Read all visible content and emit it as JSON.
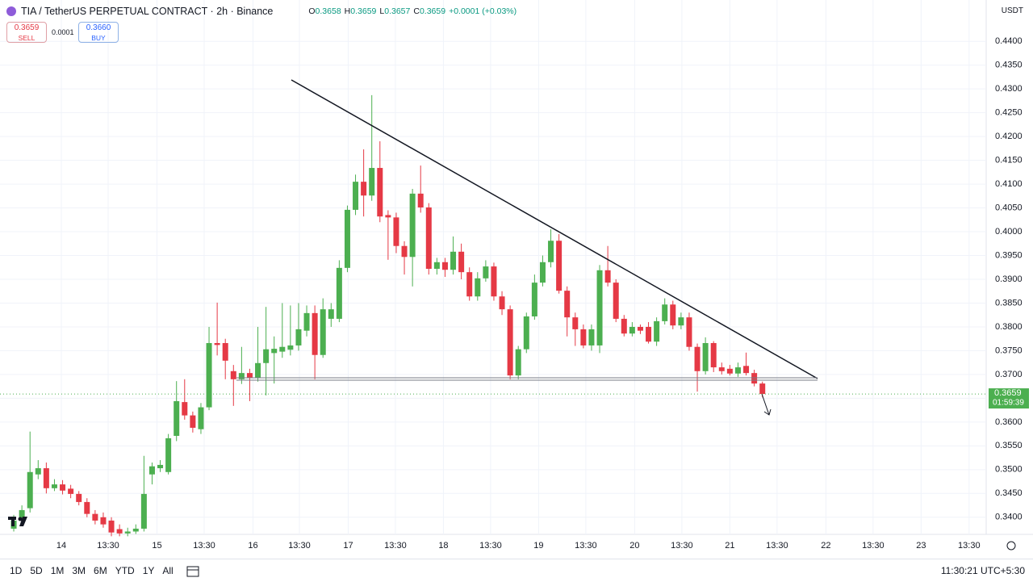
{
  "header": {
    "title": "TIA / TetherUS PERPETUAL CONTRACT · 2h · Binance",
    "ohlc": [
      {
        "label": "O",
        "value": "0.3658"
      },
      {
        "label": "H",
        "value": "0.3659"
      },
      {
        "label": "L",
        "value": "0.3657"
      },
      {
        "label": "C",
        "value": "0.3659"
      }
    ],
    "change": "+0.0001 (+0.03%)",
    "sell": {
      "price": "0.3659",
      "label": "SELL"
    },
    "spread": "0.0001",
    "buy": {
      "price": "0.3660",
      "label": "BUY"
    },
    "currency": "USDT"
  },
  "chart_data": {
    "type": "candlestick",
    "up_color": "#4caf50",
    "down_color": "#e53945",
    "grid": true,
    "open": [
      0.3376,
      0.3393,
      0.3419,
      0.349,
      0.3503,
      0.3461,
      0.3469,
      0.346,
      0.3449,
      0.3432,
      0.3407,
      0.34,
      0.3393,
      0.3375,
      0.3366,
      0.337,
      0.3376,
      0.349,
      0.3503,
      0.3495,
      0.3571,
      0.3642,
      0.3614,
      0.3585,
      0.3631,
      0.3766,
      0.3766,
      0.3707,
      0.369,
      0.3703,
      0.3693,
      0.3724,
      0.3745,
      0.3748,
      0.3752,
      0.3761,
      0.3792,
      0.3829,
      0.3741,
      0.3817,
      0.3817,
      0.3924,
      0.4046,
      0.4105,
      0.4076,
      0.4134,
      0.4035,
      0.403,
      0.397,
      0.3947,
      0.408,
      0.4051,
      0.3922,
      0.3936,
      0.392,
      0.3958,
      0.3915,
      0.3864,
      0.3902,
      0.3927,
      0.3864,
      0.3837,
      0.3698,
      0.3753,
      0.3822,
      0.3893,
      0.3936,
      0.3981,
      0.3876,
      0.382,
      0.3795,
      0.3761,
      0.3761,
      0.3919,
      0.3893,
      0.3817,
      0.3786,
      0.38,
      0.38,
      0.3769,
      0.3812,
      0.3847,
      0.3803,
      0.382,
      0.3758,
      0.3707,
      0.3766,
      0.3715,
      0.3712,
      0.3702,
      0.3718,
      0.3703,
      0.3681
    ],
    "high": [
      0.3405,
      0.3425,
      0.358,
      0.352,
      0.3515,
      0.348,
      0.3478,
      0.3468,
      0.3455,
      0.344,
      0.3415,
      0.341,
      0.34,
      0.3385,
      0.3378,
      0.3385,
      0.3529,
      0.3515,
      0.352,
      0.3575,
      0.3686,
      0.369,
      0.3622,
      0.364,
      0.38,
      0.3851,
      0.3775,
      0.372,
      0.3758,
      0.3712,
      0.38,
      0.3842,
      0.378,
      0.385,
      0.3845,
      0.385,
      0.3845,
      0.3845,
      0.386,
      0.385,
      0.394,
      0.4055,
      0.412,
      0.4173,
      0.4287,
      0.419,
      0.4045,
      0.404,
      0.398,
      0.409,
      0.4139,
      0.406,
      0.3945,
      0.3945,
      0.399,
      0.3975,
      0.3925,
      0.3915,
      0.394,
      0.3935,
      0.3875,
      0.3845,
      0.376,
      0.383,
      0.391,
      0.395,
      0.4005,
      0.3995,
      0.3885,
      0.383,
      0.3805,
      0.3805,
      0.393,
      0.397,
      0.39,
      0.3825,
      0.381,
      0.3805,
      0.381,
      0.382,
      0.386,
      0.3855,
      0.383,
      0.383,
      0.3765,
      0.3778,
      0.377,
      0.3725,
      0.372,
      0.3725,
      0.3746,
      0.371,
      0.3685
    ],
    "low": [
      0.337,
      0.3385,
      0.341,
      0.348,
      0.345,
      0.3455,
      0.3448,
      0.344,
      0.3425,
      0.34,
      0.3385,
      0.3378,
      0.336,
      0.336,
      0.336,
      0.3365,
      0.337,
      0.3469,
      0.3495,
      0.349,
      0.356,
      0.3605,
      0.3578,
      0.3575,
      0.3625,
      0.374,
      0.369,
      0.3634,
      0.368,
      0.3644,
      0.3685,
      0.3656,
      0.3681,
      0.3735,
      0.374,
      0.375,
      0.378,
      0.369,
      0.3735,
      0.38,
      0.381,
      0.3915,
      0.4035,
      0.4032,
      0.4065,
      0.402,
      0.3941,
      0.3955,
      0.391,
      0.3885,
      0.404,
      0.391,
      0.391,
      0.3905,
      0.391,
      0.39,
      0.3855,
      0.3855,
      0.3895,
      0.3855,
      0.3825,
      0.369,
      0.369,
      0.3745,
      0.3815,
      0.3885,
      0.3925,
      0.387,
      0.378,
      0.376,
      0.3755,
      0.375,
      0.3745,
      0.3885,
      0.381,
      0.378,
      0.378,
      0.3785,
      0.3765,
      0.376,
      0.3805,
      0.3795,
      0.3795,
      0.375,
      0.3664,
      0.37,
      0.3705,
      0.37,
      0.3698,
      0.3695,
      0.3698,
      0.3675,
      0.3652
    ],
    "close": [
      0.3393,
      0.3415,
      0.3495,
      0.3503,
      0.3461,
      0.3469,
      0.3456,
      0.3449,
      0.3432,
      0.3407,
      0.3393,
      0.3385,
      0.3368,
      0.3366,
      0.337,
      0.3376,
      0.3449,
      0.3507,
      0.351,
      0.3566,
      0.3644,
      0.3614,
      0.3588,
      0.3631,
      0.3766,
      0.3762,
      0.3729,
      0.369,
      0.3703,
      0.3693,
      0.3724,
      0.3753,
      0.3754,
      0.3758,
      0.3761,
      0.3795,
      0.3829,
      0.3741,
      0.3837,
      0.3837,
      0.3924,
      0.4046,
      0.4105,
      0.4076,
      0.4134,
      0.4032,
      0.403,
      0.397,
      0.3947,
      0.408,
      0.4051,
      0.3922,
      0.3936,
      0.392,
      0.3958,
      0.3915,
      0.3864,
      0.3902,
      0.3927,
      0.3864,
      0.3837,
      0.3698,
      0.3753,
      0.3822,
      0.3893,
      0.3936,
      0.3981,
      0.3876,
      0.382,
      0.3795,
      0.3761,
      0.3795,
      0.3919,
      0.3893,
      0.3817,
      0.3786,
      0.38,
      0.3792,
      0.3769,
      0.3812,
      0.3847,
      0.3803,
      0.382,
      0.3758,
      0.3707,
      0.3766,
      0.3715,
      0.3707,
      0.3702,
      0.3715,
      0.3703,
      0.3681,
      0.3659
    ],
    "xlim": [
      -1.69,
      119.5
    ],
    "xticks": [
      {
        "value": 5.85,
        "label": "14"
      },
      {
        "value": 11.6,
        "label": "13:30"
      },
      {
        "value": 17.6,
        "label": "15"
      },
      {
        "value": 23.4,
        "label": "13:30"
      },
      {
        "value": 29.4,
        "label": "16"
      },
      {
        "value": 35.1,
        "label": "13:30"
      },
      {
        "value": 41.1,
        "label": "17"
      },
      {
        "value": 46.9,
        "label": "13:30"
      },
      {
        "value": 52.8,
        "label": "18"
      },
      {
        "value": 58.6,
        "label": "13:30"
      },
      {
        "value": 64.5,
        "label": "19"
      },
      {
        "value": 70.3,
        "label": "13:30"
      },
      {
        "value": 76.3,
        "label": "20"
      },
      {
        "value": 82.1,
        "label": "13:30"
      },
      {
        "value": 88.0,
        "label": "21"
      },
      {
        "value": 93.8,
        "label": "13:30"
      },
      {
        "value": 99.8,
        "label": "22"
      },
      {
        "value": 105.6,
        "label": "13:30"
      },
      {
        "value": 111.5,
        "label": "23"
      },
      {
        "value": 117.4,
        "label": "13:30"
      }
    ],
    "ylim": [
      0.3364,
      0.4436
    ],
    "yticks": [
      {
        "value": 0.34,
        "label": "0.3400"
      },
      {
        "value": 0.345,
        "label": "0.3450"
      },
      {
        "value": 0.35,
        "label": "0.3500"
      },
      {
        "value": 0.355,
        "label": "0.3550"
      },
      {
        "value": 0.36,
        "label": "0.3600"
      },
      {
        "value": 0.365,
        "label": "0.3650"
      },
      {
        "value": 0.37,
        "label": "0.3700"
      },
      {
        "value": 0.375,
        "label": "0.3750"
      },
      {
        "value": 0.38,
        "label": "0.3800"
      },
      {
        "value": 0.385,
        "label": "0.3850"
      },
      {
        "value": 0.39,
        "label": "0.3900"
      },
      {
        "value": 0.395,
        "label": "0.3950"
      },
      {
        "value": 0.4,
        "label": "0.4000"
      },
      {
        "value": 0.405,
        "label": "0.4050"
      },
      {
        "value": 0.41,
        "label": "0.4100"
      },
      {
        "value": 0.415,
        "label": "0.4150"
      },
      {
        "value": 0.42,
        "label": "0.4200"
      },
      {
        "value": 0.425,
        "label": "0.4250"
      },
      {
        "value": 0.43,
        "label": "0.4300"
      },
      {
        "value": 0.435,
        "label": "0.4350"
      },
      {
        "value": 0.44,
        "label": "0.4400"
      }
    ],
    "last_price": 0.3659,
    "countdown": "01:59:39"
  },
  "toolbar": {
    "periods": [
      "1D",
      "5D",
      "1M",
      "3M",
      "6M",
      "YTD",
      "1Y",
      "All"
    ],
    "clock": "11:30:21 UTC+5:30"
  }
}
